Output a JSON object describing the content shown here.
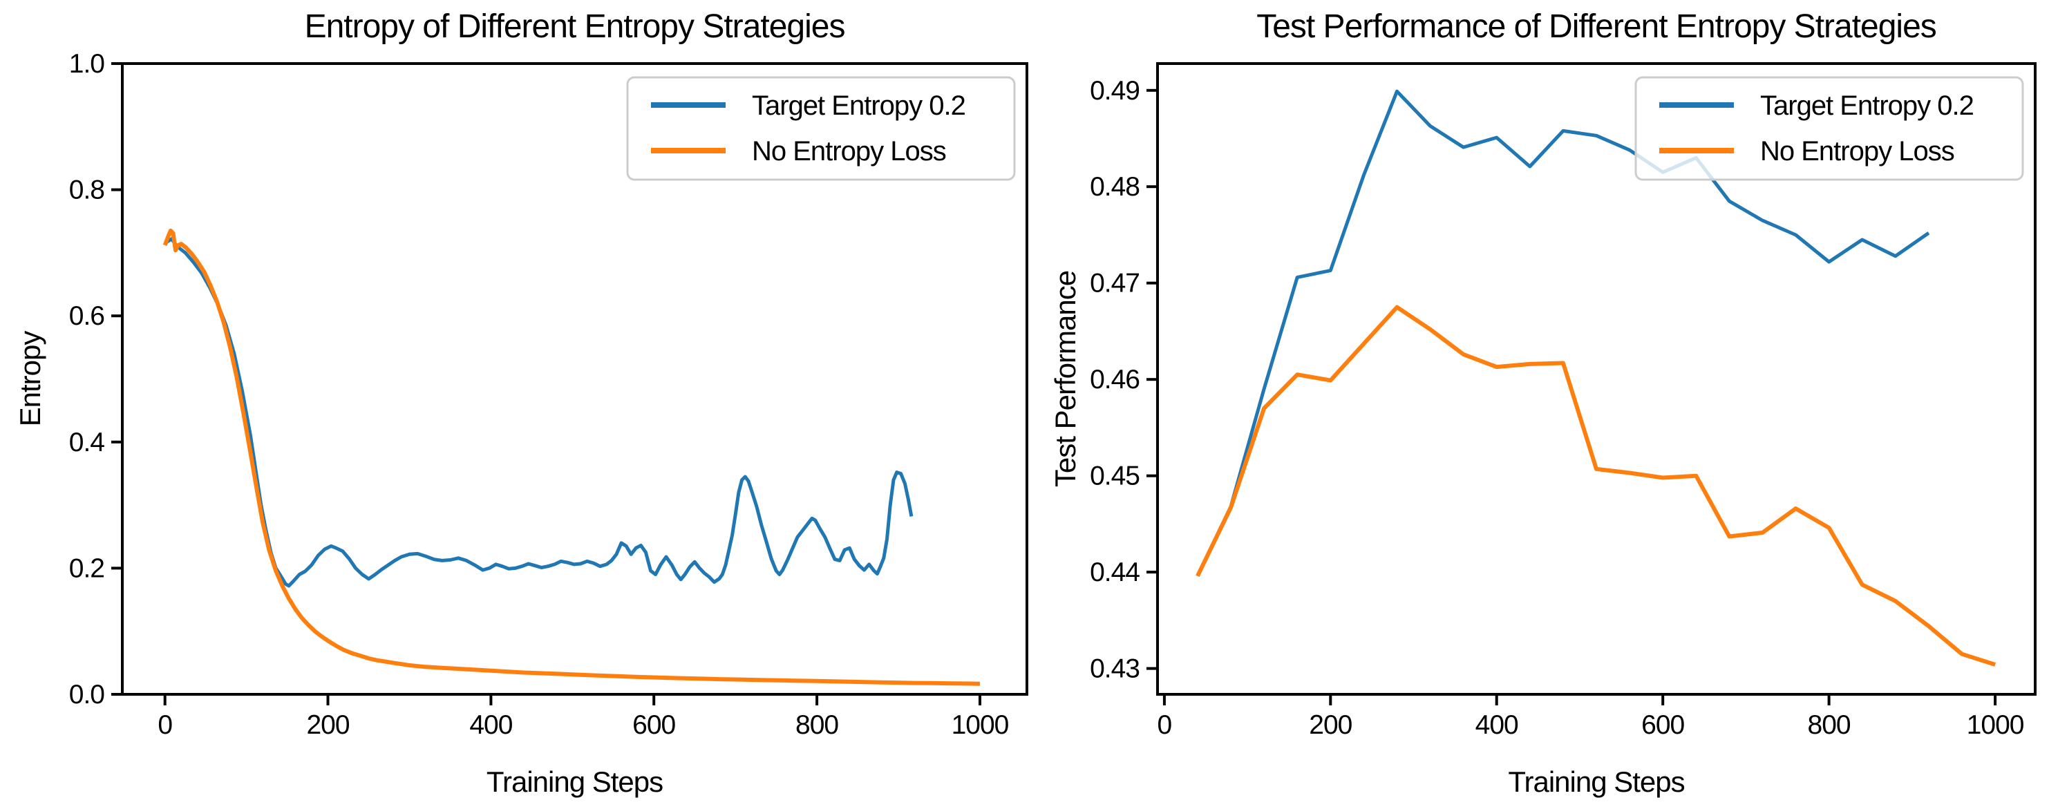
{
  "figure": {
    "background": "#ffffff"
  },
  "colors": {
    "blue": "#1f77b4",
    "orange": "#ff7f0e",
    "axis": "#000000",
    "legend_edge": "#cccccc"
  },
  "chart_data": [
    {
      "type": "line",
      "title": "Entropy of Different Entropy Strategies",
      "xlabel": "Training Steps",
      "ylabel": "Entropy",
      "xlim": [
        -52.3,
        1057.7
      ],
      "ylim": [
        0.0,
        1.0
      ],
      "xticks": [
        0,
        200,
        400,
        600,
        800,
        1000
      ],
      "yticks": [
        "0.0",
        "0.2",
        "0.4",
        "0.6",
        "0.8",
        "1.0"
      ],
      "grid": false,
      "legend_position": "upper right",
      "series": [
        {
          "name": "Target Entropy 0.2",
          "color": "#1f77b4",
          "width": 5,
          "x": [
            0,
            8,
            15,
            25,
            35,
            45,
            55,
            65,
            75,
            85,
            95,
            105,
            112,
            118,
            124,
            130,
            136,
            142,
            148,
            152,
            158,
            165,
            172,
            180,
            188,
            196,
            204,
            210,
            218,
            226,
            234,
            242,
            250,
            258,
            266,
            274,
            282,
            290,
            300,
            310,
            320,
            330,
            340,
            350,
            360,
            370,
            380,
            390,
            398,
            406,
            414,
            422,
            430,
            438,
            446,
            454,
            462,
            470,
            478,
            486,
            494,
            502,
            510,
            518,
            526,
            534,
            542,
            548,
            554,
            560,
            566,
            572,
            578,
            584,
            590,
            596,
            602,
            608,
            615,
            622,
            628,
            633,
            638,
            644,
            650,
            656,
            662,
            668,
            674,
            680,
            684,
            688,
            692,
            696,
            700,
            704,
            708,
            712,
            716,
            720,
            726,
            732,
            738,
            744,
            750,
            754,
            758,
            764,
            770,
            776,
            782,
            788,
            794,
            798,
            804,
            810,
            816,
            822,
            828,
            834,
            840,
            846,
            852,
            858,
            864,
            870,
            874,
            878,
            882,
            886,
            890,
            894,
            898,
            903,
            908,
            912,
            916
          ],
          "y": [
            0.715,
            0.722,
            0.71,
            0.7,
            0.685,
            0.668,
            0.645,
            0.618,
            0.585,
            0.54,
            0.48,
            0.41,
            0.35,
            0.3,
            0.26,
            0.225,
            0.2,
            0.188,
            0.175,
            0.172,
            0.18,
            0.19,
            0.195,
            0.205,
            0.22,
            0.23,
            0.235,
            0.232,
            0.227,
            0.215,
            0.2,
            0.19,
            0.183,
            0.19,
            0.198,
            0.205,
            0.212,
            0.218,
            0.222,
            0.223,
            0.219,
            0.214,
            0.212,
            0.213,
            0.216,
            0.212,
            0.205,
            0.197,
            0.2,
            0.206,
            0.203,
            0.199,
            0.2,
            0.203,
            0.207,
            0.204,
            0.201,
            0.203,
            0.206,
            0.211,
            0.209,
            0.206,
            0.207,
            0.211,
            0.208,
            0.203,
            0.206,
            0.212,
            0.222,
            0.24,
            0.235,
            0.222,
            0.232,
            0.236,
            0.225,
            0.196,
            0.19,
            0.205,
            0.218,
            0.205,
            0.19,
            0.182,
            0.19,
            0.202,
            0.21,
            0.2,
            0.192,
            0.186,
            0.178,
            0.183,
            0.19,
            0.205,
            0.228,
            0.252,
            0.285,
            0.32,
            0.34,
            0.345,
            0.338,
            0.322,
            0.298,
            0.268,
            0.242,
            0.215,
            0.196,
            0.19,
            0.197,
            0.213,
            0.231,
            0.249,
            0.259,
            0.269,
            0.279,
            0.276,
            0.262,
            0.249,
            0.231,
            0.214,
            0.212,
            0.229,
            0.232,
            0.214,
            0.204,
            0.197,
            0.206,
            0.196,
            0.191,
            0.203,
            0.216,
            0.246,
            0.3,
            0.34,
            0.352,
            0.35,
            0.334,
            0.31,
            0.282
          ]
        },
        {
          "name": "No Entropy Loss",
          "color": "#ff7f0e",
          "width": 6,
          "x": [
            0,
            4,
            7,
            10,
            13,
            16,
            20,
            26,
            33,
            40,
            48,
            56,
            64,
            72,
            80,
            88,
            96,
            104,
            112,
            120,
            128,
            136,
            144,
            152,
            160,
            168,
            176,
            184,
            192,
            200,
            210,
            220,
            230,
            240,
            250,
            260,
            270,
            280,
            290,
            300,
            320,
            340,
            360,
            380,
            400,
            420,
            440,
            460,
            480,
            500,
            520,
            540,
            560,
            580,
            600,
            620,
            640,
            660,
            680,
            700,
            720,
            740,
            760,
            780,
            800,
            820,
            840,
            860,
            880,
            900,
            920,
            940,
            960,
            980,
            1000
          ],
          "y": [
            0.712,
            0.726,
            0.735,
            0.731,
            0.704,
            0.712,
            0.714,
            0.708,
            0.698,
            0.686,
            0.67,
            0.648,
            0.622,
            0.59,
            0.55,
            0.503,
            0.448,
            0.39,
            0.33,
            0.272,
            0.228,
            0.196,
            0.172,
            0.152,
            0.135,
            0.121,
            0.11,
            0.1,
            0.092,
            0.085,
            0.077,
            0.07,
            0.065,
            0.061,
            0.057,
            0.054,
            0.052,
            0.05,
            0.048,
            0.046,
            0.0435,
            0.042,
            0.0405,
            0.039,
            0.0375,
            0.036,
            0.0345,
            0.0335,
            0.0325,
            0.0315,
            0.0305,
            0.0295,
            0.0285,
            0.0275,
            0.0268,
            0.026,
            0.0253,
            0.0247,
            0.024,
            0.0235,
            0.023,
            0.0225,
            0.022,
            0.0215,
            0.021,
            0.0205,
            0.02,
            0.0195,
            0.019,
            0.0185,
            0.018,
            0.0177,
            0.0174,
            0.0171,
            0.0168
          ]
        }
      ]
    },
    {
      "type": "line",
      "title": "Test Performance of Different Entropy Strategies",
      "xlabel": "Training Steps",
      "ylabel": "Test Performance",
      "xlim": [
        -8.2,
        1048.2
      ],
      "ylim": [
        0.42732,
        0.49278
      ],
      "xticks": [
        0,
        200,
        400,
        600,
        800,
        1000
      ],
      "yticks": [
        "0.43",
        "0.44",
        "0.45",
        "0.46",
        "0.47",
        "0.48",
        "0.49"
      ],
      "grid": false,
      "legend_position": "upper right",
      "series": [
        {
          "name": "Target Entropy 0.2",
          "color": "#1f77b4",
          "width": 5,
          "x": [
            40,
            80,
            120,
            160,
            200,
            240,
            280,
            320,
            360,
            400,
            440,
            480,
            520,
            560,
            600,
            640,
            680,
            720,
            760,
            800,
            840,
            880,
            920
          ],
          "y": [
            0.4396,
            0.4468,
            0.459,
            0.4706,
            0.4713,
            0.4812,
            0.4899,
            0.4863,
            0.4841,
            0.4851,
            0.4821,
            0.4858,
            0.4853,
            0.4838,
            0.4815,
            0.483,
            0.4785,
            0.4765,
            0.475,
            0.4722,
            0.4745,
            0.4728,
            0.4752
          ]
        },
        {
          "name": "No Entropy Loss",
          "color": "#ff7f0e",
          "width": 6,
          "x": [
            40,
            80,
            120,
            160,
            200,
            240,
            280,
            320,
            360,
            400,
            440,
            480,
            520,
            560,
            600,
            640,
            680,
            720,
            760,
            800,
            840,
            880,
            920,
            960,
            1000
          ],
          "y": [
            0.4396,
            0.4467,
            0.457,
            0.4605,
            0.4599,
            0.4637,
            0.4675,
            0.4652,
            0.4626,
            0.4613,
            0.4616,
            0.4617,
            0.4507,
            0.4503,
            0.4498,
            0.45,
            0.4437,
            0.4441,
            0.4466,
            0.4446,
            0.4387,
            0.437,
            0.4344,
            0.4315,
            0.4304
          ]
        }
      ]
    }
  ],
  "legend": {
    "items": [
      {
        "label": "Target Entropy 0.2",
        "color": "#1f77b4"
      },
      {
        "label": "No Entropy Loss",
        "color": "#ff7f0e"
      }
    ]
  }
}
